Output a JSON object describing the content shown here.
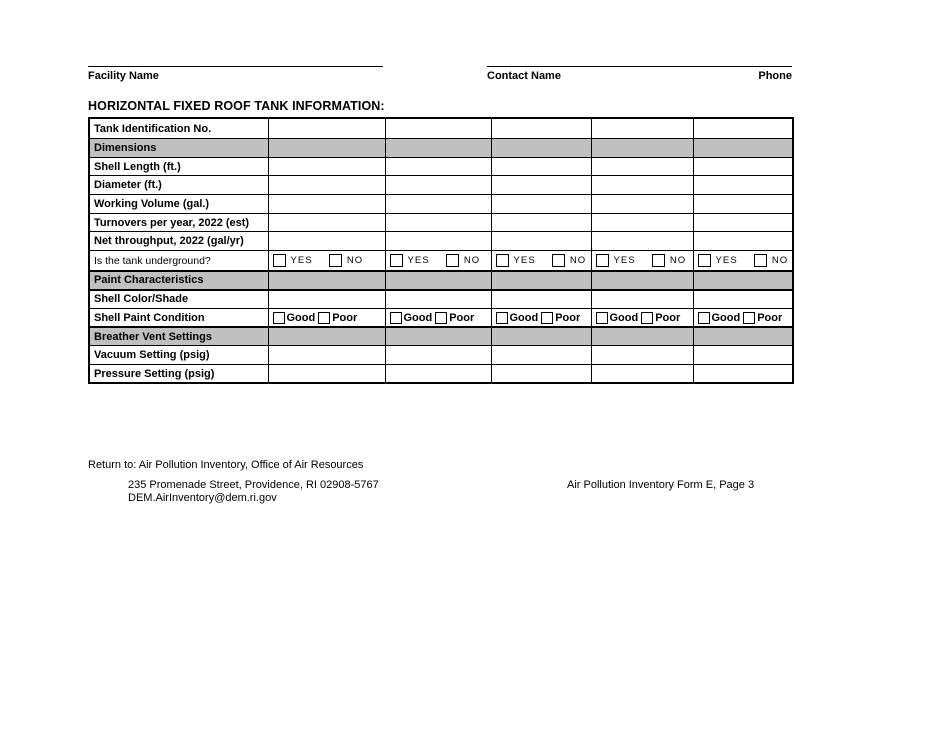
{
  "header": {
    "facility_label": "Facility Name",
    "contact_label": "Contact Name",
    "phone_label": "Phone"
  },
  "title": "HORIZONTAL FIXED ROOF TANK INFORMATION:",
  "table": {
    "num_data_columns": 5,
    "checkbox_labels": {
      "yes": "YES",
      "no": "NO",
      "good": "Good",
      "poor": "Poor"
    },
    "rows": [
      {
        "label": "Tank Identification No.",
        "type": "input"
      },
      {
        "label": "Dimensions",
        "type": "section"
      },
      {
        "label": "Shell Length (ft.)",
        "type": "input"
      },
      {
        "label": "Diameter (ft.)",
        "type": "input"
      },
      {
        "label": "Working Volume (gal.)",
        "type": "input"
      },
      {
        "label": "Turnovers per year, 2022 (est)",
        "type": "input"
      },
      {
        "label": "Net throughput, 2022 (gal/yr)",
        "type": "input"
      },
      {
        "label": "Is the tank underground?",
        "type": "yesno"
      },
      {
        "label": "Paint Characteristics",
        "type": "section"
      },
      {
        "label": "Shell Color/Shade",
        "type": "input"
      },
      {
        "label": "Shell Paint Condition",
        "type": "goodpoor"
      },
      {
        "label": "Breather Vent Settings",
        "type": "section"
      },
      {
        "label": "Vacuum Setting (psig)",
        "type": "input"
      },
      {
        "label": "Pressure Setting (psig)",
        "type": "input"
      }
    ]
  },
  "footer": {
    "return_to": "Return to:  Air Pollution Inventory, Office of Air Resources",
    "address_line1": "235 Promenade Street, Providence, RI 02908-5767",
    "address_line2": "DEM.AirInventory@dem.ri.gov",
    "form_ref": "Air Pollution Inventory Form E, Page 3"
  },
  "colors": {
    "section_row_bg": "#c0c0c0",
    "border": "#000000"
  }
}
